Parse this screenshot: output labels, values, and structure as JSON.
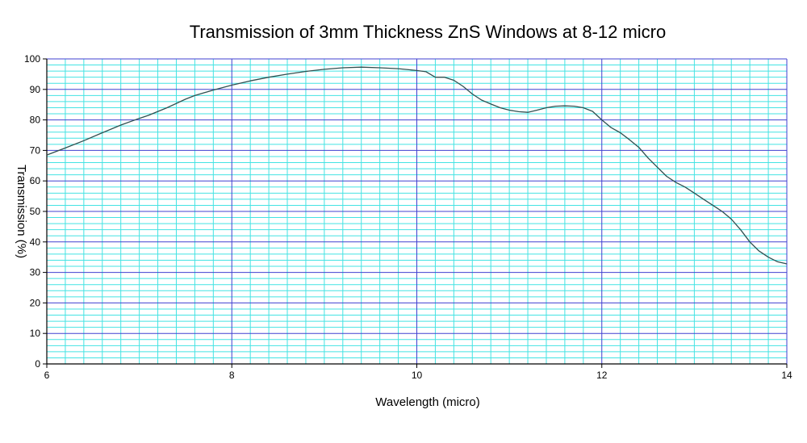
{
  "chart_data": {
    "type": "line",
    "title": "Transmission of 3mm Thickness ZnS Windows at 8-12 micro",
    "xlabel": "Wavelength (micro)",
    "ylabel": "Transmission (%)",
    "xlim": [
      6,
      14
    ],
    "ylim": [
      0,
      100
    ],
    "x_ticks": [
      "6",
      "8",
      "10",
      "12",
      "14"
    ],
    "y_ticks": [
      "0",
      "10",
      "20",
      "30",
      "40",
      "50",
      "60",
      "70",
      "80",
      "90",
      "100"
    ],
    "grid": true,
    "colors": {
      "minor_grid": "#44e3e3",
      "major_grid": "#4040d0",
      "axis": "#000000",
      "line": "#2f5050"
    },
    "series": [
      {
        "x": [
          6.0,
          6.2,
          6.4,
          6.6,
          6.8,
          7.0,
          7.1,
          7.3,
          7.5,
          7.6,
          7.8,
          8.0,
          8.2,
          8.4,
          8.6,
          8.8,
          9.0,
          9.2,
          9.4,
          9.6,
          9.8,
          10.0,
          10.1,
          10.2,
          10.3,
          10.4,
          10.5,
          10.6,
          10.7,
          10.8,
          10.9,
          11.0,
          11.1,
          11.2,
          11.3,
          11.4,
          11.5,
          11.6,
          11.7,
          11.8,
          11.9,
          12.0,
          12.1,
          12.2,
          12.3,
          12.4,
          12.5,
          12.6,
          12.7,
          12.8,
          12.9,
          13.0,
          13.1,
          13.2,
          13.3,
          13.4,
          13.5,
          13.55,
          13.6,
          13.7,
          13.8,
          13.9,
          14.0
        ],
        "values": [
          68.5,
          70.8,
          73.2,
          75.8,
          78.3,
          80.5,
          81.5,
          84.0,
          86.8,
          88.0,
          89.8,
          91.4,
          92.8,
          94.0,
          95.0,
          95.9,
          96.6,
          97.1,
          97.3,
          97.1,
          96.8,
          96.2,
          95.8,
          94.0,
          94.0,
          93.0,
          91.0,
          88.5,
          86.5,
          85.2,
          84.0,
          83.2,
          82.7,
          82.5,
          83.2,
          84.0,
          84.5,
          84.6,
          84.5,
          84.0,
          82.8,
          80.0,
          77.5,
          75.8,
          73.5,
          71.0,
          67.5,
          64.5,
          61.5,
          59.5,
          58.0,
          56.0,
          54.0,
          52.0,
          50.0,
          47.5,
          44.0,
          42.0,
          40.0,
          37.0,
          35.0,
          33.5,
          32.8
        ]
      }
    ]
  }
}
